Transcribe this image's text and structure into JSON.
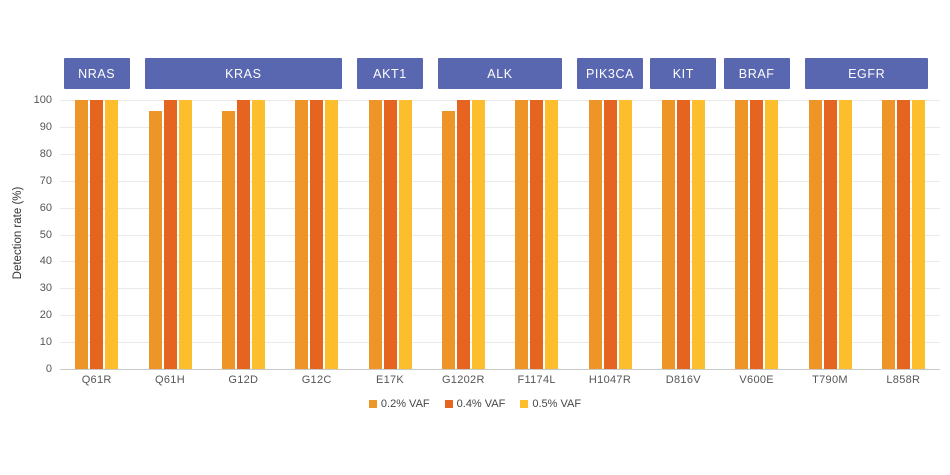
{
  "chart_data": {
    "type": "grouped-bar",
    "title": "",
    "ylabel": "Detection rate (%)",
    "xlabel": "",
    "ylim": [
      0,
      100
    ],
    "yticks": [
      0,
      10,
      20,
      30,
      40,
      50,
      60,
      70,
      80,
      90,
      100
    ],
    "grid": true,
    "legend_position": "bottom-center",
    "categories": [
      "Q61R",
      "Q61H",
      "G12D",
      "G12C",
      "E17K",
      "G1202R",
      "F1174L",
      "H1047R",
      "D816V",
      "V600E",
      "T790M",
      "L858R"
    ],
    "gene_groups": [
      {
        "label": "NRAS",
        "from_index": 0,
        "to_index": 0
      },
      {
        "label": "KRAS",
        "from_index": 1,
        "to_index": 3
      },
      {
        "label": "AKT1",
        "from_index": 4,
        "to_index": 4
      },
      {
        "label": "ALK",
        "from_index": 5,
        "to_index": 6
      },
      {
        "label": "PIK3CA",
        "from_index": 7,
        "to_index": 7
      },
      {
        "label": "KIT",
        "from_index": 8,
        "to_index": 8
      },
      {
        "label": "BRAF",
        "from_index": 9,
        "to_index": 9
      },
      {
        "label": "EGFR",
        "from_index": 10,
        "to_index": 11
      }
    ],
    "series": [
      {
        "name": "0.2% VAF",
        "color": "#ED9627",
        "values": [
          100,
          96,
          96,
          100,
          100,
          96,
          100,
          100,
          100,
          100,
          100,
          100
        ]
      },
      {
        "name": "0.4% VAF",
        "color": "#E5641F",
        "values": [
          100,
          100,
          100,
          100,
          100,
          100,
          100,
          100,
          100,
          100,
          100,
          100
        ]
      },
      {
        "name": "0.5% VAF",
        "color": "#FCBE2D",
        "values": [
          100,
          100,
          100,
          100,
          100,
          100,
          100,
          100,
          100,
          100,
          100,
          100
        ]
      }
    ],
    "colors": {
      "gene_box": "#5966B0",
      "gene_box_text": "#FFFFFF",
      "gridline": "#E9E9E9",
      "axis_line": "#C9C9C9",
      "tick_text": "#565656"
    }
  }
}
